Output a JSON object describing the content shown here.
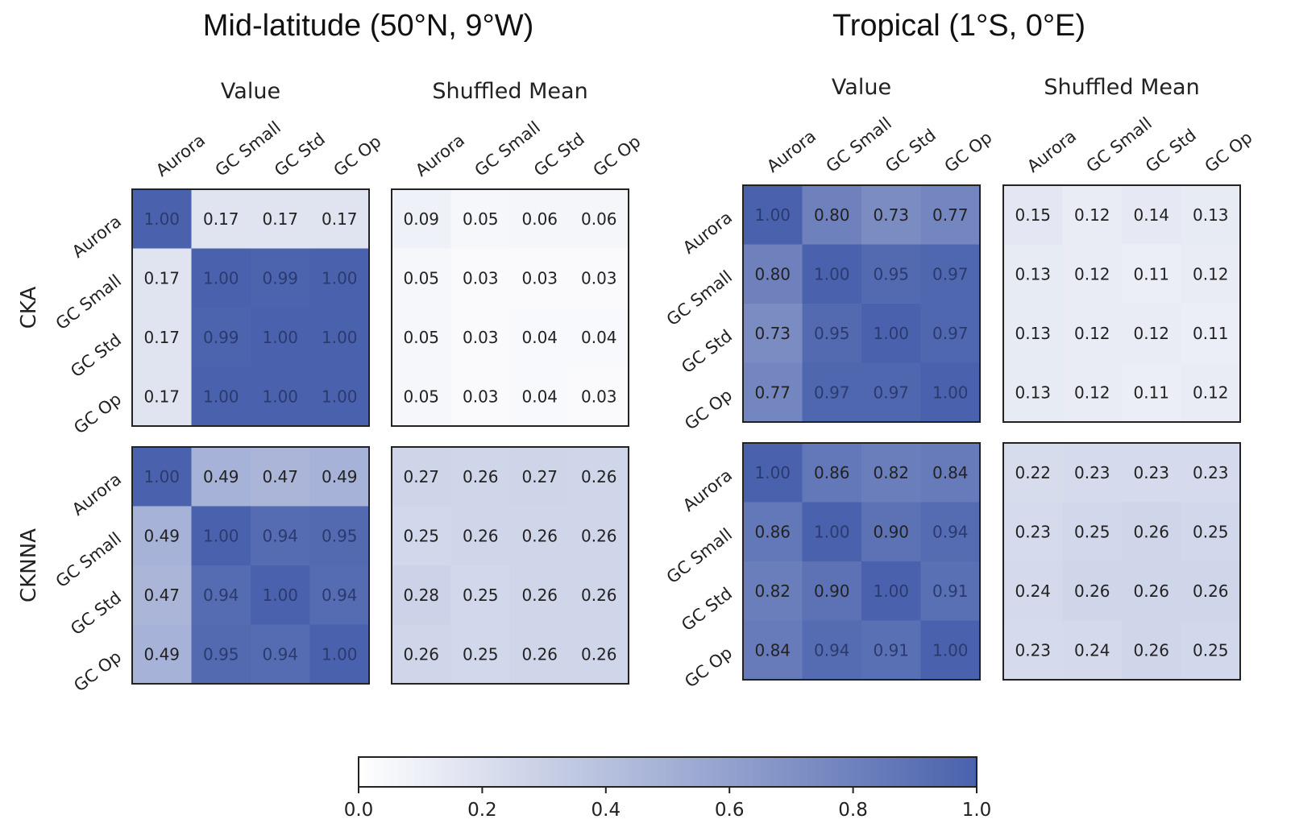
{
  "colorscale": {
    "low": "#ffffff",
    "high": "#4a62ad"
  },
  "chart_data": {
    "type": "heatmap",
    "panels": [
      {
        "title": "Mid-latitude (50°N, 9°W)"
      },
      {
        "title": "Tropical (1°S, 0°E)"
      }
    ],
    "column_titles": [
      "Value",
      "Shuffled Mean"
    ],
    "metrics": [
      "CKA",
      "CKNNA"
    ],
    "models": [
      "Aurora",
      "GC Small",
      "GC Std",
      "GC Op"
    ],
    "matrices": [
      {
        "panel": 0,
        "metric": "CKA",
        "kind": "Value",
        "values": [
          [
            1.0,
            0.17,
            0.17,
            0.17
          ],
          [
            0.17,
            1.0,
            0.99,
            1.0
          ],
          [
            0.17,
            0.99,
            1.0,
            1.0
          ],
          [
            0.17,
            1.0,
            1.0,
            1.0
          ]
        ]
      },
      {
        "panel": 0,
        "metric": "CKA",
        "kind": "Shuffled Mean",
        "values": [
          [
            0.09,
            0.05,
            0.06,
            0.06
          ],
          [
            0.05,
            0.03,
            0.03,
            0.03
          ],
          [
            0.05,
            0.03,
            0.04,
            0.04
          ],
          [
            0.05,
            0.03,
            0.04,
            0.03
          ]
        ]
      },
      {
        "panel": 0,
        "metric": "CKNNA",
        "kind": "Value",
        "values": [
          [
            1.0,
            0.49,
            0.47,
            0.49
          ],
          [
            0.49,
            1.0,
            0.94,
            0.95
          ],
          [
            0.47,
            0.94,
            1.0,
            0.94
          ],
          [
            0.49,
            0.95,
            0.94,
            1.0
          ]
        ]
      },
      {
        "panel": 0,
        "metric": "CKNNA",
        "kind": "Shuffled Mean",
        "values": [
          [
            0.27,
            0.26,
            0.27,
            0.26
          ],
          [
            0.25,
            0.26,
            0.26,
            0.26
          ],
          [
            0.28,
            0.25,
            0.26,
            0.26
          ],
          [
            0.26,
            0.25,
            0.26,
            0.26
          ]
        ]
      },
      {
        "panel": 1,
        "metric": "CKA",
        "kind": "Value",
        "values": [
          [
            1.0,
            0.8,
            0.73,
            0.77
          ],
          [
            0.8,
            1.0,
            0.95,
            0.97
          ],
          [
            0.73,
            0.95,
            1.0,
            0.97
          ],
          [
            0.77,
            0.97,
            0.97,
            1.0
          ]
        ]
      },
      {
        "panel": 1,
        "metric": "CKA",
        "kind": "Shuffled Mean",
        "values": [
          [
            0.15,
            0.12,
            0.14,
            0.13
          ],
          [
            0.13,
            0.12,
            0.11,
            0.12
          ],
          [
            0.13,
            0.12,
            0.12,
            0.11
          ],
          [
            0.13,
            0.12,
            0.11,
            0.12
          ]
        ]
      },
      {
        "panel": 1,
        "metric": "CKNNA",
        "kind": "Value",
        "values": [
          [
            1.0,
            0.86,
            0.82,
            0.84
          ],
          [
            0.86,
            1.0,
            0.9,
            0.94
          ],
          [
            0.82,
            0.9,
            1.0,
            0.91
          ],
          [
            0.84,
            0.94,
            0.91,
            1.0
          ]
        ]
      },
      {
        "panel": 1,
        "metric": "CKNNA",
        "kind": "Shuffled Mean",
        "values": [
          [
            0.22,
            0.23,
            0.23,
            0.23
          ],
          [
            0.23,
            0.25,
            0.26,
            0.25
          ],
          [
            0.24,
            0.26,
            0.26,
            0.26
          ],
          [
            0.23,
            0.24,
            0.26,
            0.25
          ]
        ]
      }
    ],
    "colorbar": {
      "range": [
        0.0,
        1.0
      ],
      "ticks": [
        "0.0",
        "0.2",
        "0.4",
        "0.6",
        "0.8",
        "1.0"
      ]
    }
  }
}
